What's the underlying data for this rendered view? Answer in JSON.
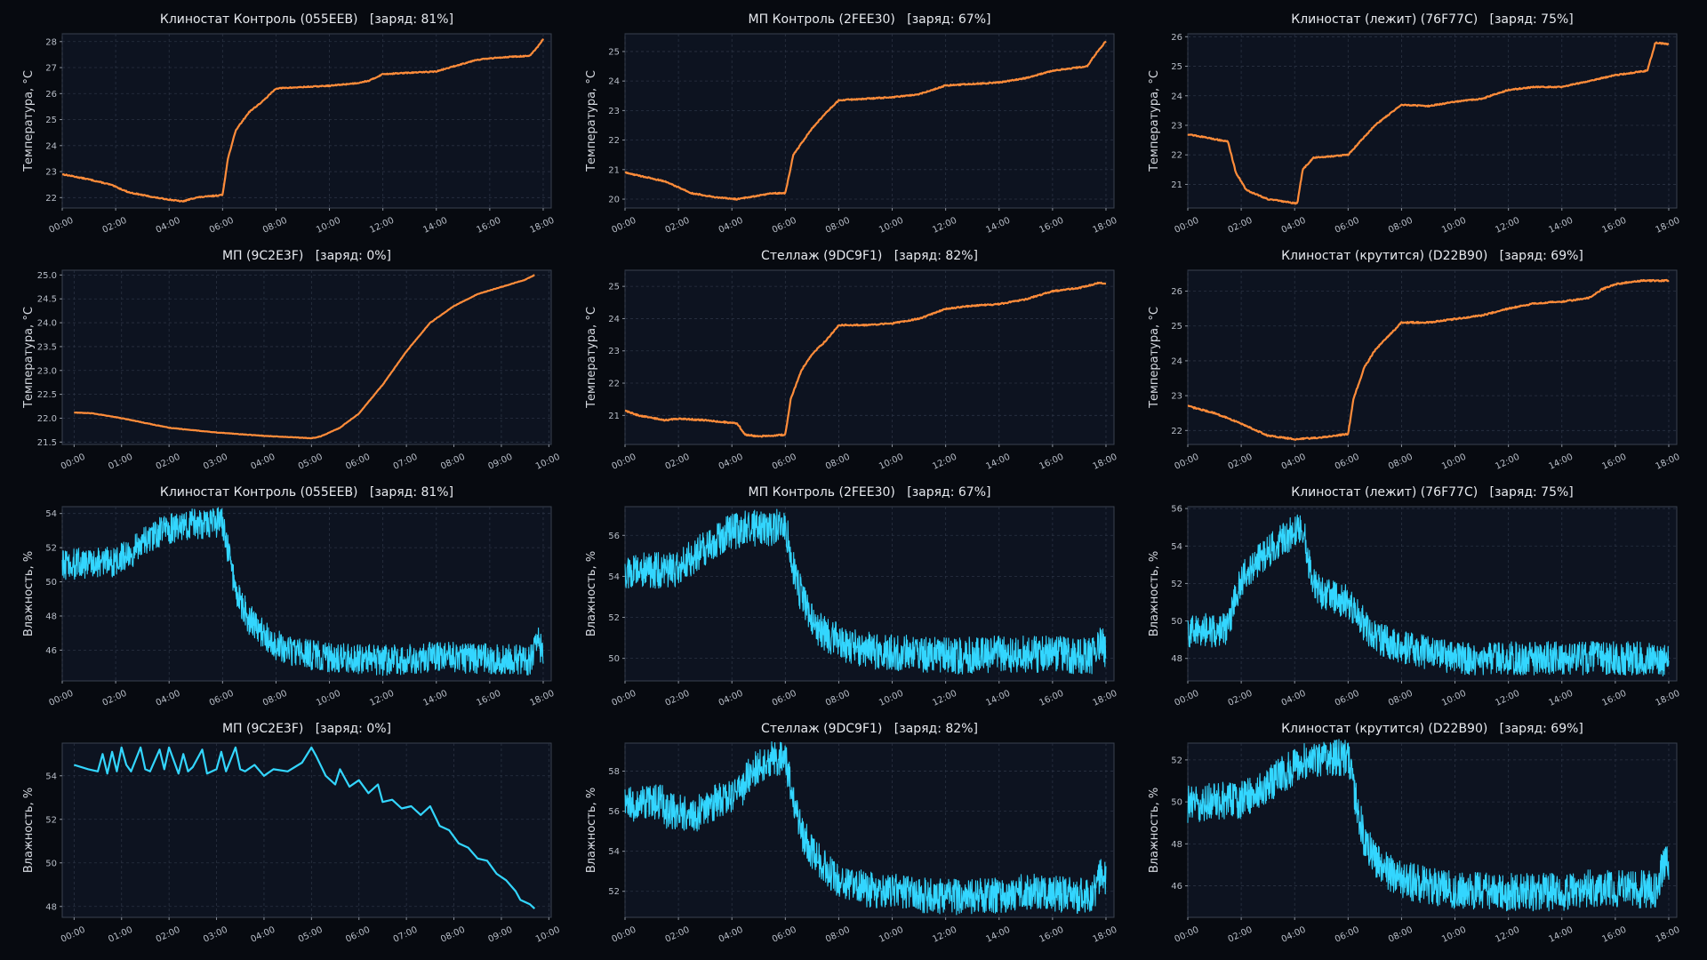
{
  "colors": {
    "temperature": "#ff8c3a",
    "humidity": "#33d6ff",
    "background": "#070a10",
    "plot_background": "#0d1320",
    "grid": "#2a3242"
  },
  "chart_data": [
    {
      "type": "line",
      "title": "Клиностат Контроль (055EEB)   [заряд: 81%]",
      "ylabel": "Температура, °C",
      "xlabel": "",
      "xlim": [
        0,
        18.3
      ],
      "ylim": [
        21.6,
        28.3
      ],
      "grid": true,
      "noise": 0.04,
      "x_ticks": [
        0,
        2,
        4,
        6,
        8,
        10,
        12,
        14,
        16,
        18
      ],
      "x_tick_labels": [
        "00:00",
        "02:00",
        "04:00",
        "06:00",
        "08:00",
        "10:00",
        "12:00",
        "14:00",
        "16:00",
        "18:00"
      ],
      "y_ticks": [
        22,
        23,
        24,
        25,
        26,
        27,
        28
      ],
      "y_tick_labels": [
        "22",
        "23",
        "24",
        "25",
        "26",
        "27",
        "28"
      ],
      "x": [
        0,
        1,
        1.8,
        2.5,
        3.5,
        4.5,
        5,
        6,
        6.2,
        6.5,
        7,
        7.5,
        8,
        9,
        10,
        11,
        11.5,
        12,
        13,
        14,
        14.5,
        15.5,
        16.5,
        17.5,
        17.8,
        18
      ],
      "y": [
        22.9,
        22.7,
        22.5,
        22.2,
        22.0,
        21.85,
        22.0,
        22.1,
        23.5,
        24.6,
        25.3,
        25.7,
        26.2,
        26.25,
        26.3,
        26.4,
        26.5,
        26.75,
        26.8,
        26.85,
        27.0,
        27.3,
        27.4,
        27.45,
        27.8,
        28.1
      ]
    },
    {
      "type": "line",
      "title": "МП Контроль (2FEE30)   [заряд: 67%]",
      "ylabel": "Температура, °C",
      "xlabel": "",
      "xlim": [
        0,
        18.3
      ],
      "ylim": [
        19.7,
        25.6
      ],
      "grid": true,
      "noise": 0.04,
      "x_ticks": [
        0,
        2,
        4,
        6,
        8,
        10,
        12,
        14,
        16,
        18
      ],
      "x_tick_labels": [
        "00:00",
        "02:00",
        "04:00",
        "06:00",
        "08:00",
        "10:00",
        "12:00",
        "14:00",
        "16:00",
        "18:00"
      ],
      "y_ticks": [
        20,
        21,
        22,
        23,
        24,
        25
      ],
      "y_tick_labels": [
        "20",
        "21",
        "22",
        "23",
        "24",
        "25"
      ],
      "x": [
        0,
        1.5,
        2.5,
        3.5,
        4.2,
        5.5,
        6,
        6.3,
        7,
        7.5,
        8,
        9,
        10,
        11,
        12,
        13,
        14,
        15,
        16,
        17.3,
        17.6,
        18
      ],
      "y": [
        20.9,
        20.6,
        20.2,
        20.05,
        20.0,
        20.2,
        20.2,
        21.5,
        22.4,
        22.9,
        23.35,
        23.4,
        23.45,
        23.55,
        23.85,
        23.9,
        23.95,
        24.1,
        24.35,
        24.5,
        24.9,
        25.35
      ]
    },
    {
      "type": "line",
      "title": "Клиностат (лежит) (76F77C)   [заряд: 75%]",
      "ylabel": "Температура, °C",
      "xlabel": "",
      "xlim": [
        0,
        18.3
      ],
      "ylim": [
        20.2,
        26.1
      ],
      "grid": true,
      "noise": 0.04,
      "x_ticks": [
        0,
        2,
        4,
        6,
        8,
        10,
        12,
        14,
        16,
        18
      ],
      "x_tick_labels": [
        "00:00",
        "02:00",
        "04:00",
        "06:00",
        "08:00",
        "10:00",
        "12:00",
        "14:00",
        "16:00",
        "18:00"
      ],
      "y_ticks": [
        21,
        22,
        23,
        24,
        25,
        26
      ],
      "y_tick_labels": [
        "21",
        "22",
        "23",
        "24",
        "25",
        "26"
      ],
      "x": [
        0,
        1.5,
        1.8,
        2.2,
        3,
        4.1,
        4.3,
        4.7,
        6,
        7,
        8,
        9,
        10,
        11,
        12,
        13,
        14,
        15,
        16,
        17.2,
        17.5,
        18
      ],
      "y": [
        22.7,
        22.45,
        21.4,
        20.8,
        20.5,
        20.35,
        21.5,
        21.9,
        22.0,
        23.0,
        23.7,
        23.65,
        23.8,
        23.9,
        24.2,
        24.3,
        24.3,
        24.5,
        24.7,
        24.85,
        25.8,
        25.75
      ]
    },
    {
      "type": "line",
      "title": "МП (9C2E3F)   [заряд: 0%]",
      "ylabel": "Температура, °C",
      "xlabel": "",
      "xlim": [
        -0.25,
        10.05
      ],
      "ylim": [
        21.45,
        25.1
      ],
      "grid": true,
      "noise": 0.01,
      "x_ticks": [
        0,
        1,
        2,
        3,
        4,
        5,
        6,
        7,
        8,
        9,
        10
      ],
      "x_tick_labels": [
        "00:00",
        "01:00",
        "02:00",
        "03:00",
        "04:00",
        "05:00",
        "06:00",
        "07:00",
        "08:00",
        "09:00",
        "10:00"
      ],
      "y_ticks": [
        21.5,
        22.0,
        22.5,
        23.0,
        23.5,
        24.0,
        24.5,
        25.0
      ],
      "y_tick_labels": [
        "21.5",
        "22.0",
        "22.5",
        "23.0",
        "23.5",
        "24.0",
        "24.5",
        "25.0"
      ],
      "x": [
        0,
        0.4,
        1,
        2,
        3,
        4,
        5,
        5.2,
        5.6,
        6,
        6.5,
        7,
        7.5,
        8,
        8.5,
        9,
        9.5,
        9.7
      ],
      "y": [
        22.12,
        22.1,
        22.0,
        21.8,
        21.7,
        21.63,
        21.58,
        21.62,
        21.8,
        22.1,
        22.7,
        23.4,
        24.0,
        24.35,
        24.6,
        24.75,
        24.9,
        25.0
      ]
    },
    {
      "type": "line",
      "title": "Стеллаж (9DC9F1)   [заряд: 82%]",
      "ylabel": "Температура, °C",
      "xlabel": "",
      "xlim": [
        0,
        18.3
      ],
      "ylim": [
        20.1,
        25.5
      ],
      "grid": true,
      "noise": 0.04,
      "x_ticks": [
        0,
        2,
        4,
        6,
        8,
        10,
        12,
        14,
        16,
        18
      ],
      "x_tick_labels": [
        "00:00",
        "02:00",
        "04:00",
        "06:00",
        "08:00",
        "10:00",
        "12:00",
        "14:00",
        "16:00",
        "18:00"
      ],
      "y_ticks": [
        21,
        22,
        23,
        24,
        25
      ],
      "y_tick_labels": [
        "21",
        "22",
        "23",
        "24",
        "25"
      ],
      "x": [
        0,
        0.5,
        1.5,
        2,
        3,
        4.2,
        4.5,
        5,
        6,
        6.2,
        6.6,
        7,
        7.5,
        8,
        9,
        10,
        11,
        12,
        13,
        14,
        15,
        16,
        17,
        17.7,
        18
      ],
      "y": [
        21.15,
        21.0,
        20.85,
        20.9,
        20.85,
        20.75,
        20.4,
        20.35,
        20.4,
        21.5,
        22.4,
        22.9,
        23.3,
        23.8,
        23.8,
        23.85,
        24.0,
        24.3,
        24.4,
        24.45,
        24.6,
        24.85,
        24.95,
        25.1,
        25.1
      ]
    },
    {
      "type": "line",
      "title": "Клиностат (крутится) (D22B90)   [заряд: 69%]",
      "ylabel": "Температура, °C",
      "xlabel": "",
      "xlim": [
        0,
        18.3
      ],
      "ylim": [
        21.6,
        26.6
      ],
      "grid": true,
      "noise": 0.04,
      "x_ticks": [
        0,
        2,
        4,
        6,
        8,
        10,
        12,
        14,
        16,
        18
      ],
      "x_tick_labels": [
        "00:00",
        "02:00",
        "04:00",
        "06:00",
        "08:00",
        "10:00",
        "12:00",
        "14:00",
        "16:00",
        "18:00"
      ],
      "y_ticks": [
        22,
        23,
        24,
        25,
        26
      ],
      "y_tick_labels": [
        "22",
        "23",
        "24",
        "25",
        "26"
      ],
      "x": [
        0,
        1,
        2,
        3,
        4,
        5,
        6,
        6.2,
        6.6,
        7,
        7.5,
        8,
        9,
        10,
        11,
        12,
        13,
        14,
        15,
        15.5,
        16,
        17,
        18
      ],
      "y": [
        22.7,
        22.5,
        22.2,
        21.85,
        21.75,
        21.8,
        21.9,
        22.9,
        23.8,
        24.3,
        24.7,
        25.1,
        25.1,
        25.2,
        25.3,
        25.5,
        25.65,
        25.7,
        25.8,
        26.05,
        26.2,
        26.3,
        26.3
      ]
    },
    {
      "type": "line",
      "title": "Клиностат Контроль (055EEB)   [заряд: 81%]",
      "ylabel": "Влажность, %",
      "xlabel": "",
      "xlim": [
        0,
        18.3
      ],
      "ylim": [
        44.2,
        54.4
      ],
      "grid": true,
      "noise": 0.9,
      "x_ticks": [
        0,
        2,
        4,
        6,
        8,
        10,
        12,
        14,
        16,
        18
      ],
      "x_tick_labels": [
        "00:00",
        "02:00",
        "04:00",
        "06:00",
        "08:00",
        "10:00",
        "12:00",
        "14:00",
        "16:00",
        "18:00"
      ],
      "y_ticks": [
        46,
        48,
        50,
        52,
        54
      ],
      "y_tick_labels": [
        "46",
        "48",
        "50",
        "52",
        "54"
      ],
      "x": [
        0,
        2,
        2.5,
        3,
        3.5,
        4,
        4.5,
        5,
        5.5,
        6,
        6.3,
        6.6,
        7,
        7.5,
        8,
        9,
        10,
        11,
        12,
        14,
        16,
        17.5,
        17.8,
        18
      ],
      "y": [
        51.0,
        51.2,
        51.6,
        52.2,
        52.8,
        53.1,
        53.3,
        53.4,
        53.4,
        53.5,
        51.0,
        49.0,
        47.8,
        47.0,
        46.3,
        45.8,
        45.6,
        45.5,
        45.4,
        45.6,
        45.5,
        45.4,
        46.5,
        45.8
      ]
    },
    {
      "type": "line",
      "title": "МП Контроль (2FEE30)   [заряд: 67%]",
      "ylabel": "Влажность, %",
      "xlabel": "",
      "xlim": [
        0,
        18.3
      ],
      "ylim": [
        48.9,
        57.4
      ],
      "grid": true,
      "noise": 0.9,
      "x_ticks": [
        0,
        2,
        4,
        6,
        8,
        10,
        12,
        14,
        16,
        18
      ],
      "x_tick_labels": [
        "00:00",
        "02:00",
        "04:00",
        "06:00",
        "08:00",
        "10:00",
        "12:00",
        "14:00",
        "16:00",
        "18:00"
      ],
      "y_ticks": [
        50,
        52,
        54,
        56
      ],
      "y_tick_labels": [
        "50",
        "52",
        "54",
        "56"
      ],
      "x": [
        0,
        2,
        2.5,
        3,
        3.5,
        4,
        4.5,
        5,
        5.5,
        6,
        6.3,
        6.6,
        7,
        7.5,
        8,
        9,
        10,
        11,
        12,
        14,
        16,
        17.5,
        17.8,
        18
      ],
      "y": [
        54.2,
        54.4,
        54.9,
        55.4,
        55.9,
        56.2,
        56.3,
        56.4,
        56.3,
        56.5,
        54.5,
        53.0,
        51.8,
        51.2,
        50.8,
        50.4,
        50.3,
        50.2,
        50.1,
        50.2,
        50.2,
        50.1,
        50.8,
        50.3
      ]
    },
    {
      "type": "line",
      "title": "Клиностат (лежит) (76F77C)   [заряд: 75%]",
      "ylabel": "Влажность, %",
      "xlabel": "",
      "xlim": [
        0,
        18.3
      ],
      "ylim": [
        46.8,
        56.1
      ],
      "grid": true,
      "noise": 0.9,
      "x_ticks": [
        0,
        2,
        4,
        6,
        8,
        10,
        12,
        14,
        16,
        18
      ],
      "x_tick_labels": [
        "00:00",
        "02:00",
        "04:00",
        "06:00",
        "08:00",
        "10:00",
        "12:00",
        "14:00",
        "16:00",
        "18:00"
      ],
      "y_ticks": [
        48,
        50,
        52,
        54,
        56
      ],
      "y_tick_labels": [
        "48",
        "50",
        "52",
        "54",
        "56"
      ],
      "x": [
        0,
        1.5,
        1.8,
        2.2,
        2.8,
        3.5,
        4.0,
        4.3,
        4.6,
        5,
        6,
        6.5,
        7,
        8,
        9,
        10,
        12,
        14,
        16,
        17.5,
        18
      ],
      "y": [
        49.5,
        49.5,
        51.5,
        52.6,
        53.5,
        54.3,
        54.8,
        55.1,
        52.5,
        51.5,
        51.0,
        50.0,
        49.2,
        48.6,
        48.3,
        48.0,
        48.0,
        48.0,
        48.0,
        48.0,
        47.8
      ]
    },
    {
      "type": "line",
      "title": "МП (9C2E3F)   [заряд: 0%]",
      "ylabel": "Влажность, %",
      "xlabel": "",
      "xlim": [
        -0.25,
        10.05
      ],
      "ylim": [
        47.5,
        55.5
      ],
      "grid": true,
      "noise": 0,
      "x_ticks": [
        0,
        1,
        2,
        3,
        4,
        5,
        6,
        7,
        8,
        9,
        10
      ],
      "x_tick_labels": [
        "00:00",
        "01:00",
        "02:00",
        "03:00",
        "04:00",
        "05:00",
        "06:00",
        "07:00",
        "08:00",
        "09:00",
        "10:00"
      ],
      "y_ticks": [
        48,
        50,
        52,
        54
      ],
      "y_tick_labels": [
        "48",
        "50",
        "52",
        "54"
      ],
      "x": [
        0,
        0.3,
        0.5,
        0.6,
        0.7,
        0.8,
        0.9,
        1.0,
        1.1,
        1.2,
        1.4,
        1.5,
        1.6,
        1.8,
        1.9,
        2.0,
        2.2,
        2.3,
        2.4,
        2.5,
        2.7,
        2.8,
        3.0,
        3.1,
        3.2,
        3.4,
        3.5,
        3.6,
        3.8,
        4.0,
        4.2,
        4.5,
        4.8,
        5.0,
        5.1,
        5.3,
        5.5,
        5.6,
        5.8,
        6.0,
        6.2,
        6.4,
        6.5,
        6.7,
        6.9,
        7.1,
        7.3,
        7.5,
        7.7,
        7.9,
        8.1,
        8.3,
        8.5,
        8.7,
        8.9,
        9.1,
        9.3,
        9.4,
        9.6,
        9.7
      ],
      "y": [
        54.5,
        54.3,
        54.2,
        55.0,
        54.1,
        55.1,
        54.2,
        55.3,
        54.5,
        54.2,
        55.3,
        54.3,
        54.2,
        55.2,
        54.3,
        55.3,
        54.1,
        55.0,
        54.2,
        54.4,
        55.2,
        54.1,
        54.3,
        55.1,
        54.2,
        55.3,
        54.3,
        54.2,
        54.5,
        54.0,
        54.3,
        54.2,
        54.6,
        55.3,
        54.9,
        54.0,
        53.6,
        54.3,
        53.5,
        53.8,
        53.2,
        53.6,
        52.8,
        52.9,
        52.5,
        52.6,
        52.2,
        52.6,
        51.7,
        51.5,
        50.9,
        50.7,
        50.2,
        50.1,
        49.5,
        49.2,
        48.7,
        48.3,
        48.1,
        47.9
      ]
    },
    {
      "type": "line",
      "title": "Стеллаж (9DC9F1)   [заряд: 82%]",
      "ylabel": "Влажность, %",
      "xlabel": "",
      "xlim": [
        0,
        18.3
      ],
      "ylim": [
        50.7,
        59.4
      ],
      "grid": true,
      "noise": 0.9,
      "x_ticks": [
        0,
        2,
        4,
        6,
        8,
        10,
        12,
        14,
        16,
        18
      ],
      "x_tick_labels": [
        "00:00",
        "02:00",
        "04:00",
        "06:00",
        "08:00",
        "10:00",
        "12:00",
        "14:00",
        "16:00",
        "18:00"
      ],
      "y_ticks": [
        52,
        54,
        56,
        58
      ],
      "y_tick_labels": [
        "52",
        "54",
        "56",
        "58"
      ],
      "x": [
        0,
        1.4,
        1.5,
        2.0,
        2.5,
        3.0,
        3.5,
        4.0,
        4.4,
        4.6,
        5.0,
        5.5,
        6.0,
        6.3,
        6.6,
        7.0,
        7.5,
        8.0,
        9.0,
        10,
        12,
        14,
        15,
        16,
        17.5,
        17.8,
        18
      ],
      "y": [
        56.3,
        56.5,
        56.0,
        56.0,
        55.7,
        56.2,
        56.5,
        56.8,
        57.0,
        57.8,
        58.3,
        58.6,
        58.6,
        56.5,
        55.0,
        54.0,
        53.2,
        52.5,
        52.1,
        52.0,
        51.7,
        51.8,
        52.0,
        51.9,
        51.7,
        52.8,
        52.5
      ]
    },
    {
      "type": "line",
      "title": "Клиностат (крутится) (D22B90)   [заряд: 69%]",
      "ylabel": "Влажность, %",
      "xlabel": "",
      "xlim": [
        0,
        18.3
      ],
      "ylim": [
        44.5,
        52.8
      ],
      "grid": true,
      "noise": 0.9,
      "x_ticks": [
        0,
        2,
        4,
        6,
        8,
        10,
        12,
        14,
        16,
        18
      ],
      "x_tick_labels": [
        "00:00",
        "02:00",
        "04:00",
        "06:00",
        "08:00",
        "10:00",
        "12:00",
        "14:00",
        "16:00",
        "18:00"
      ],
      "y_ticks": [
        46,
        48,
        50,
        52
      ],
      "y_tick_labels": [
        "46",
        "48",
        "50",
        "52"
      ],
      "x": [
        0,
        2,
        2.5,
        3,
        3.5,
        4,
        4.5,
        5,
        5.5,
        6,
        6.3,
        6.6,
        7,
        7.5,
        8,
        9,
        10,
        12,
        14,
        15,
        16,
        17.5,
        17.8,
        18
      ],
      "y": [
        49.9,
        50.1,
        50.4,
        50.8,
        51.3,
        51.7,
        52.0,
        52.1,
        52.1,
        52.1,
        50.0,
        48.3,
        47.3,
        46.7,
        46.3,
        46.0,
        45.8,
        45.7,
        45.7,
        45.9,
        45.9,
        45.8,
        47.0,
        47.0
      ]
    }
  ]
}
